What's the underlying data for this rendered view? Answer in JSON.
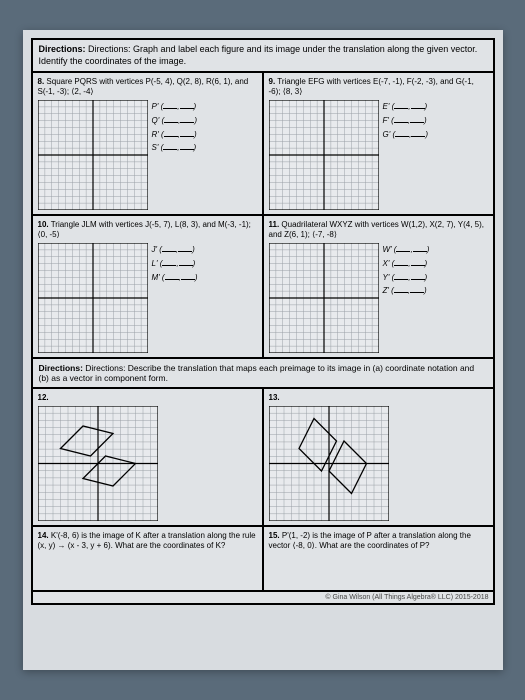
{
  "directions": "Directions: Graph and label each figure and its image under the translation along the given vector. Identify the coordinates of the image.",
  "q8": {
    "num": "8.",
    "text": "Square PQRS with vertices P(-5, 4), Q(2, 8), R(6, 1), and S(-1, -3); ⟨2, -4⟩",
    "labels": [
      "P'",
      "Q'",
      "R'",
      "S'"
    ]
  },
  "q9": {
    "num": "9.",
    "text": "Triangle EFG with vertices E(-7, -1), F(-2, -3), and G(-1, -6); ⟨8, 3⟩",
    "labels": [
      "E'",
      "F'",
      "G'"
    ]
  },
  "q10": {
    "num": "10.",
    "text": "Triangle JLM with vertices J(-5, 7), L(8, 3), and M(-3, -1); ⟨0, -5⟩",
    "labels": [
      "J'",
      "L'",
      "M'"
    ]
  },
  "q11": {
    "num": "11.",
    "text": "Quadrilateral WXYZ with vertices W(1,2), X(2, 7), Y(4, 5), and Z(6, 1); ⟨-7, -8⟩",
    "labels": [
      "W'",
      "X'",
      "Y'",
      "Z'"
    ]
  },
  "sectionDir": "Directions: Describe the translation that maps each preimage to its image in (a) coordinate notation and (b) as a vector in component form.",
  "q12": {
    "num": "12."
  },
  "q13": {
    "num": "13."
  },
  "q14": {
    "num": "14.",
    "text": "K'(-8, 6) is the image of K after a translation along the rule (x, y) → (x - 3, y + 6). What are the coordinates of K?"
  },
  "q15": {
    "num": "15.",
    "text": "P'(1, -2) is the image of P after a translation along the vector ⟨-8, 0⟩. What are the coordinates of P?"
  },
  "footer": "© Gina Wilson (All Things Algebra® LLC) 2015-2018",
  "gridStyle": {
    "size": 110,
    "cells": 16,
    "strokeMinor": "#9aa0a6",
    "strokeMajor": "#000",
    "bg": "#e8eaed"
  }
}
